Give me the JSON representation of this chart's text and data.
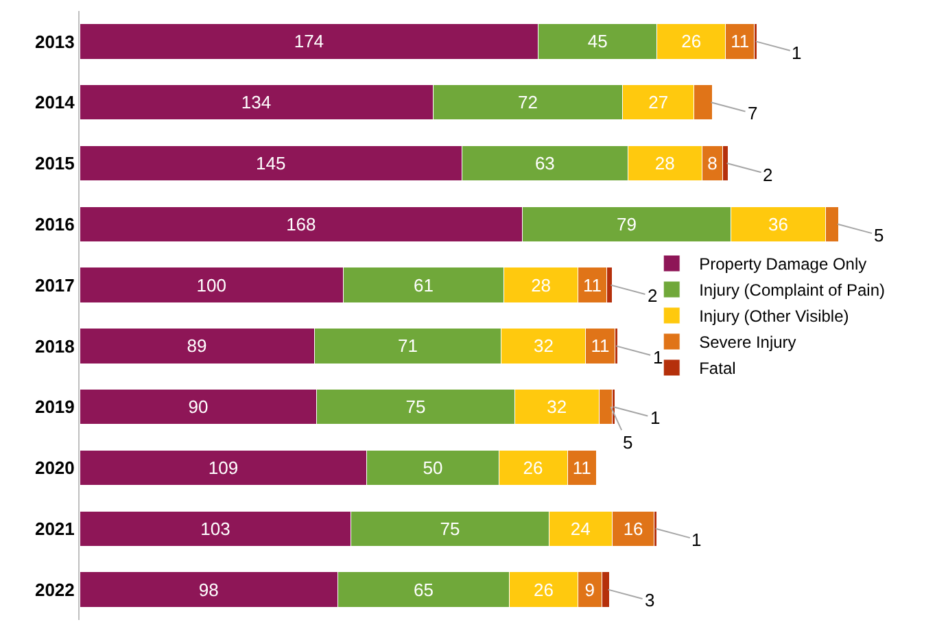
{
  "chart_data": {
    "type": "bar",
    "orientation": "horizontal",
    "stacked": true,
    "data_labels": true,
    "legend": "right",
    "categories": [
      "2013",
      "2014",
      "2015",
      "2016",
      "2017",
      "2018",
      "2019",
      "2020",
      "2021",
      "2022"
    ],
    "series": [
      {
        "name": "Property Damage Only",
        "color": "#8e1657",
        "values": [
          174,
          134,
          145,
          168,
          100,
          89,
          90,
          109,
          103,
          98
        ]
      },
      {
        "name": "Injury (Complaint of Pain)",
        "color": "#70a83a",
        "values": [
          45,
          72,
          63,
          79,
          61,
          71,
          75,
          50,
          75,
          65
        ]
      },
      {
        "name": "Injury (Other Visible)",
        "color": "#ffc90e",
        "values": [
          26,
          27,
          28,
          36,
          28,
          32,
          32,
          26,
          24,
          26
        ]
      },
      {
        "name": "Severe Injury",
        "color": "#e07418",
        "values": [
          11,
          7,
          8,
          5,
          11,
          11,
          5,
          11,
          16,
          9
        ]
      },
      {
        "name": "Fatal",
        "color": "#b5300b",
        "values": [
          1,
          null,
          2,
          null,
          2,
          1,
          1,
          null,
          1,
          3
        ]
      }
    ]
  }
}
